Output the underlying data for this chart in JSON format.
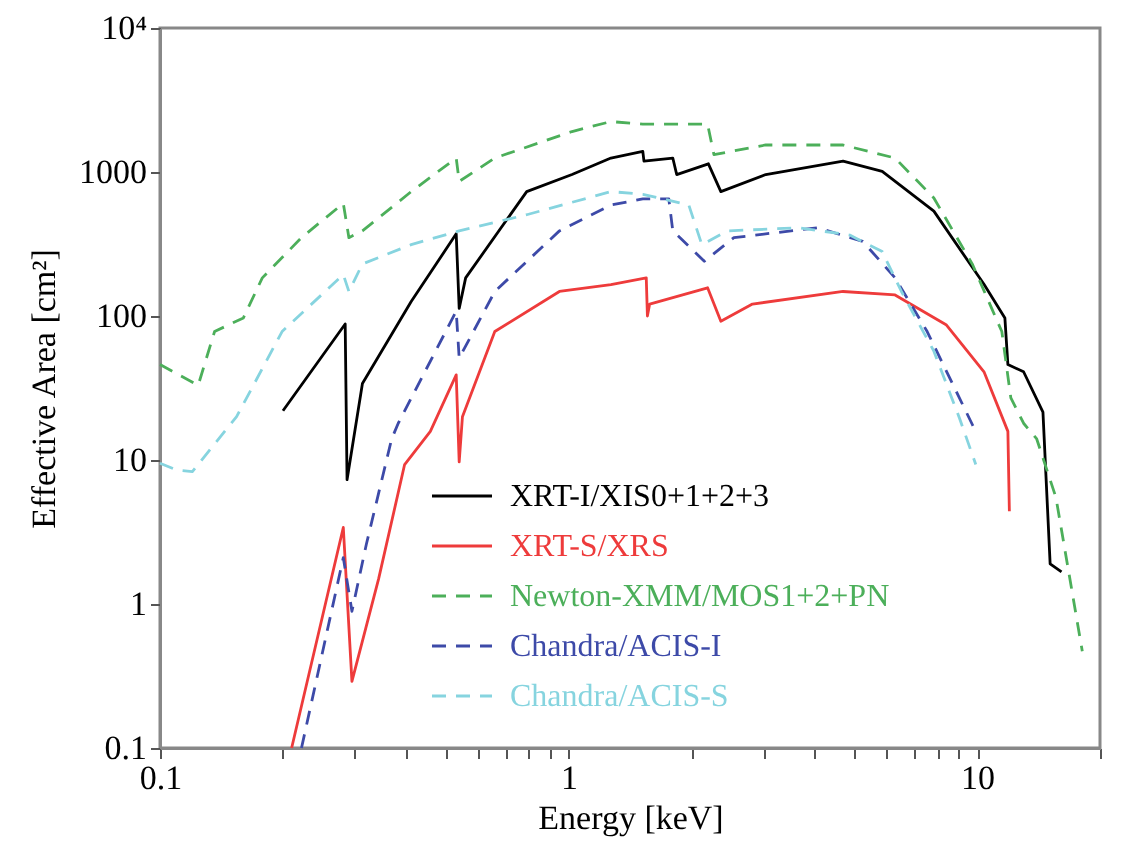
{
  "chart_data": {
    "type": "line",
    "xlabel": "Energy [keV]",
    "ylabel": "Effective Area [cm²]",
    "log": "xy",
    "grid": false,
    "legend": "bottom",
    "marker": "none",
    "xlim": [
      0.1,
      20
    ],
    "xticks": [
      0.1,
      {
        "value": 0.2,
        "label": null
      },
      {
        "value": 0.3,
        "label": null
      },
      {
        "value": 0.4,
        "label": null
      },
      {
        "value": 0.5,
        "label": null
      },
      {
        "value": 0.6,
        "label": null
      },
      {
        "value": 0.7,
        "label": null
      },
      {
        "value": 0.8,
        "label": null
      },
      {
        "value": 0.9,
        "label": null
      },
      1,
      {
        "value": 2,
        "label": null
      },
      {
        "value": 3,
        "label": null
      },
      {
        "value": 4,
        "label": null
      },
      {
        "value": 5,
        "label": null
      },
      {
        "value": 6,
        "label": null
      },
      {
        "value": 7,
        "label": null
      },
      {
        "value": 8,
        "label": null
      },
      {
        "value": 9,
        "label": null
      },
      10,
      {
        "value": 20,
        "label": null
      }
    ],
    "ylim": [
      0.1,
      10000
    ],
    "yticks": [
      0.1,
      1,
      10,
      100,
      1000,
      {
        "value": 10000,
        "label": "10⁴"
      }
    ],
    "series": [
      {
        "name": "XRT-I/XIS0+1+2+3",
        "color": "#000000",
        "line_style": "solid",
        "x": [
          0.2,
          0.284,
          0.287,
          0.313,
          0.412,
          0.531,
          0.54,
          0.56,
          0.79,
          1.02,
          1.27,
          1.52,
          1.53,
          1.8,
          1.84,
          2.2,
          2.36,
          3.04,
          4.7,
          5.86,
          7.84,
          10.4,
          11.7,
          11.9,
          13,
          14.5,
          15.1,
          16.1
        ],
        "values": [
          22,
          88,
          7.3,
          34,
          126,
          372,
          113,
          184,
          731,
          960,
          1250,
          1390,
          1190,
          1250,
          960,
          1140,
          730,
          960,
          1190,
          1010,
          535,
          166,
          97,
          46,
          41,
          21.5,
          1.9,
          1.67
        ]
      },
      {
        "name": "XRT-S/XRS",
        "color": "#ee3b3b",
        "line_style": "solid",
        "x": [
          0.21,
          0.281,
          0.295,
          0.343,
          0.397,
          0.459,
          0.531,
          0.54,
          0.55,
          0.66,
          0.95,
          1.27,
          1.55,
          1.56,
          1.58,
          2.19,
          2.36,
          2.82,
          4.7,
          6.3,
          8.4,
          10.4,
          11.9,
          12.0
        ],
        "values": [
          0.1,
          3.4,
          0.29,
          1.5,
          9.3,
          15.8,
          39,
          9.7,
          20,
          78,
          148,
          165,
          184,
          100,
          121,
          157,
          92,
          121,
          148,
          140,
          87,
          41,
          15.8,
          4.4
        ]
      },
      {
        "name": "Newton-XMM/MOS1+2+PN",
        "color": "#4caf5a",
        "line_style": "dashed",
        "x": [
          0.1,
          0.124,
          0.136,
          0.16,
          0.178,
          0.222,
          0.281,
          0.29,
          0.313,
          0.412,
          0.531,
          0.54,
          0.66,
          1.02,
          1.27,
          1.52,
          2.19,
          2.27,
          3.04,
          4.7,
          6.3,
          7.84,
          9.75,
          11.5,
          12.1,
          13,
          14,
          15.6,
          18.1
        ],
        "values": [
          46,
          33,
          78,
          97,
          184,
          350,
          606,
          350,
          390,
          731,
          1250,
          860,
          1250,
          1910,
          2240,
          2150,
          2150,
          1320,
          1540,
          1540,
          1250,
          660,
          228,
          78,
          27,
          18,
          14,
          5.5,
          0.47
        ]
      },
      {
        "name": "Chandra/ACIS-I",
        "color": "#3d4aa8",
        "line_style": "dashed",
        "x": [
          0.222,
          0.281,
          0.295,
          0.32,
          0.369,
          0.383,
          0.531,
          0.54,
          0.66,
          0.95,
          1.27,
          1.52,
          1.76,
          1.8,
          2.15,
          2.54,
          4.07,
          5.25,
          6.3,
          7.55,
          9.75,
          9.9
        ],
        "values": [
          0.1,
          2.1,
          0.89,
          2.6,
          14,
          18,
          108,
          51,
          148,
          390,
          590,
          650,
          650,
          390,
          240,
          350,
          410,
          330,
          184,
          78,
          17.5,
          16
        ]
      },
      {
        "name": "Chandra/ACIS-S",
        "color": "#86d4df",
        "line_style": "dashed",
        "x": [
          0.1,
          0.11,
          0.12,
          0.154,
          0.199,
          0.281,
          0.29,
          0.313,
          0.412,
          0.54,
          0.79,
          1.27,
          1.52,
          1.97,
          2.12,
          2.45,
          3.66,
          4.88,
          5.86,
          6.53,
          7.84,
          9.06,
          9.93
        ],
        "values": [
          9.5,
          8.5,
          8.3,
          20,
          78,
          194,
          148,
          230,
          313,
          390,
          505,
          731,
          700,
          590,
          313,
          390,
          410,
          365,
          280,
          148,
          57,
          19.5,
          9.3
        ]
      }
    ]
  }
}
